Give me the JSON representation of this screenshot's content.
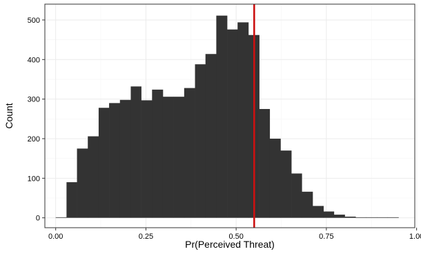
{
  "chart_data": {
    "type": "histogram",
    "title": "",
    "xlabel": "Pr(Perceived Threat)",
    "ylabel": "Count",
    "xlim": [
      -0.03,
      0.995
    ],
    "ylim": [
      -25,
      540
    ],
    "x_ticks": [
      0.0,
      0.25,
      0.5,
      0.75,
      1.0
    ],
    "x_tick_labels": [
      "0.00",
      "0.25",
      "0.50",
      "0.75",
      "1.00"
    ],
    "y_ticks": [
      0,
      100,
      200,
      300,
      400,
      500
    ],
    "y_tick_labels": [
      "0",
      "100",
      "200",
      "300",
      "400",
      "500"
    ],
    "bin_width": 0.0297,
    "bins": [
      {
        "x0": 0.0,
        "x1": 0.03,
        "count": 0
      },
      {
        "x0": 0.03,
        "x1": 0.059,
        "count": 90
      },
      {
        "x0": 0.059,
        "x1": 0.089,
        "count": 175
      },
      {
        "x0": 0.089,
        "x1": 0.119,
        "count": 206
      },
      {
        "x0": 0.119,
        "x1": 0.148,
        "count": 278
      },
      {
        "x0": 0.148,
        "x1": 0.178,
        "count": 290
      },
      {
        "x0": 0.178,
        "x1": 0.208,
        "count": 298
      },
      {
        "x0": 0.208,
        "x1": 0.237,
        "count": 332
      },
      {
        "x0": 0.237,
        "x1": 0.267,
        "count": 297
      },
      {
        "x0": 0.267,
        "x1": 0.297,
        "count": 324
      },
      {
        "x0": 0.297,
        "x1": 0.326,
        "count": 306
      },
      {
        "x0": 0.326,
        "x1": 0.356,
        "count": 306
      },
      {
        "x0": 0.356,
        "x1": 0.386,
        "count": 328
      },
      {
        "x0": 0.386,
        "x1": 0.415,
        "count": 388
      },
      {
        "x0": 0.415,
        "x1": 0.445,
        "count": 414
      },
      {
        "x0": 0.445,
        "x1": 0.475,
        "count": 511
      },
      {
        "x0": 0.475,
        "x1": 0.504,
        "count": 476
      },
      {
        "x0": 0.504,
        "x1": 0.534,
        "count": 494
      },
      {
        "x0": 0.534,
        "x1": 0.564,
        "count": 462
      },
      {
        "x0": 0.564,
        "x1": 0.593,
        "count": 275
      },
      {
        "x0": 0.593,
        "x1": 0.623,
        "count": 200
      },
      {
        "x0": 0.623,
        "x1": 0.653,
        "count": 170
      },
      {
        "x0": 0.653,
        "x1": 0.682,
        "count": 112
      },
      {
        "x0": 0.682,
        "x1": 0.712,
        "count": 66
      },
      {
        "x0": 0.712,
        "x1": 0.742,
        "count": 30
      },
      {
        "x0": 0.742,
        "x1": 0.771,
        "count": 16
      },
      {
        "x0": 0.771,
        "x1": 0.801,
        "count": 8
      },
      {
        "x0": 0.801,
        "x1": 0.831,
        "count": 3
      },
      {
        "x0": 0.831,
        "x1": 0.86,
        "count": 1
      },
      {
        "x0": 0.86,
        "x1": 0.89,
        "count": 1
      },
      {
        "x0": 0.89,
        "x1": 0.92,
        "count": 1
      },
      {
        "x0": 0.92,
        "x1": 0.95,
        "count": 1
      }
    ],
    "reference_line": {
      "x": 0.55
    },
    "grid": true,
    "legend": "none",
    "colors": {
      "bar": "#333333",
      "reference_line": "#cc1111",
      "panel_border": "#333333",
      "grid_major": "#ebebeb",
      "grid_minor": "#f5f5f5",
      "background": "#ffffff"
    }
  }
}
